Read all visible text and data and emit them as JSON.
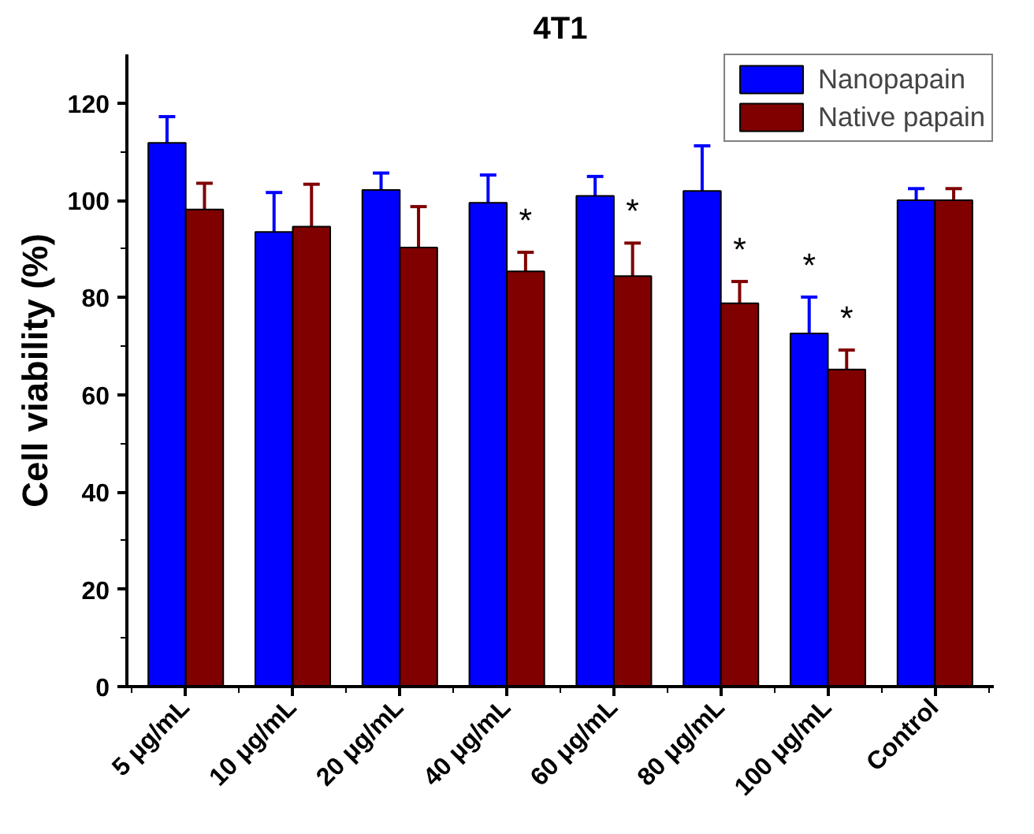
{
  "chart_data": {
    "type": "bar",
    "title": "4T1",
    "ylabel": "Cell viability (%)",
    "categories": [
      "5 μg/mL",
      "10 μg/mL",
      "20 μg/mL",
      "40 μg/mL",
      "60 μg/mL",
      "80 μg/mL",
      "100 μg/mL",
      "Control"
    ],
    "series": [
      {
        "name": "Nanopapain",
        "color": "#0000ff",
        "values": [
          111.8,
          93.5,
          102.1,
          99.5,
          100.9,
          101.9,
          72.6,
          100
        ],
        "errors": [
          5.4,
          8.1,
          3.5,
          5.7,
          4.0,
          9.3,
          7.5,
          2.4
        ]
      },
      {
        "name": "Native papain",
        "color": "#800000",
        "values": [
          98.1,
          94.6,
          90.3,
          85.4,
          84.4,
          78.8,
          65.2,
          100
        ],
        "errors": [
          5.4,
          8.7,
          8.4,
          3.9,
          6.8,
          4.5,
          4.0,
          2.4
        ]
      }
    ],
    "ylim": [
      0,
      130
    ],
    "yticks": [
      0,
      20,
      40,
      60,
      80,
      100,
      120
    ],
    "annotations": [
      {
        "text": "*",
        "x": "40 μg/mL",
        "y": 85.4
      },
      {
        "text": "*",
        "x": "60 μg/mL",
        "y": 84.4
      },
      {
        "text": "*",
        "x": "80 μg/mL",
        "y": 78.8
      },
      {
        "text": "*",
        "x": "100 μg/mL",
        "y": 72.6
      },
      {
        "text": "*",
        "x": "100 μg/mL",
        "y": 65.2
      }
    ],
    "legend": "top right",
    "grid": false
  }
}
